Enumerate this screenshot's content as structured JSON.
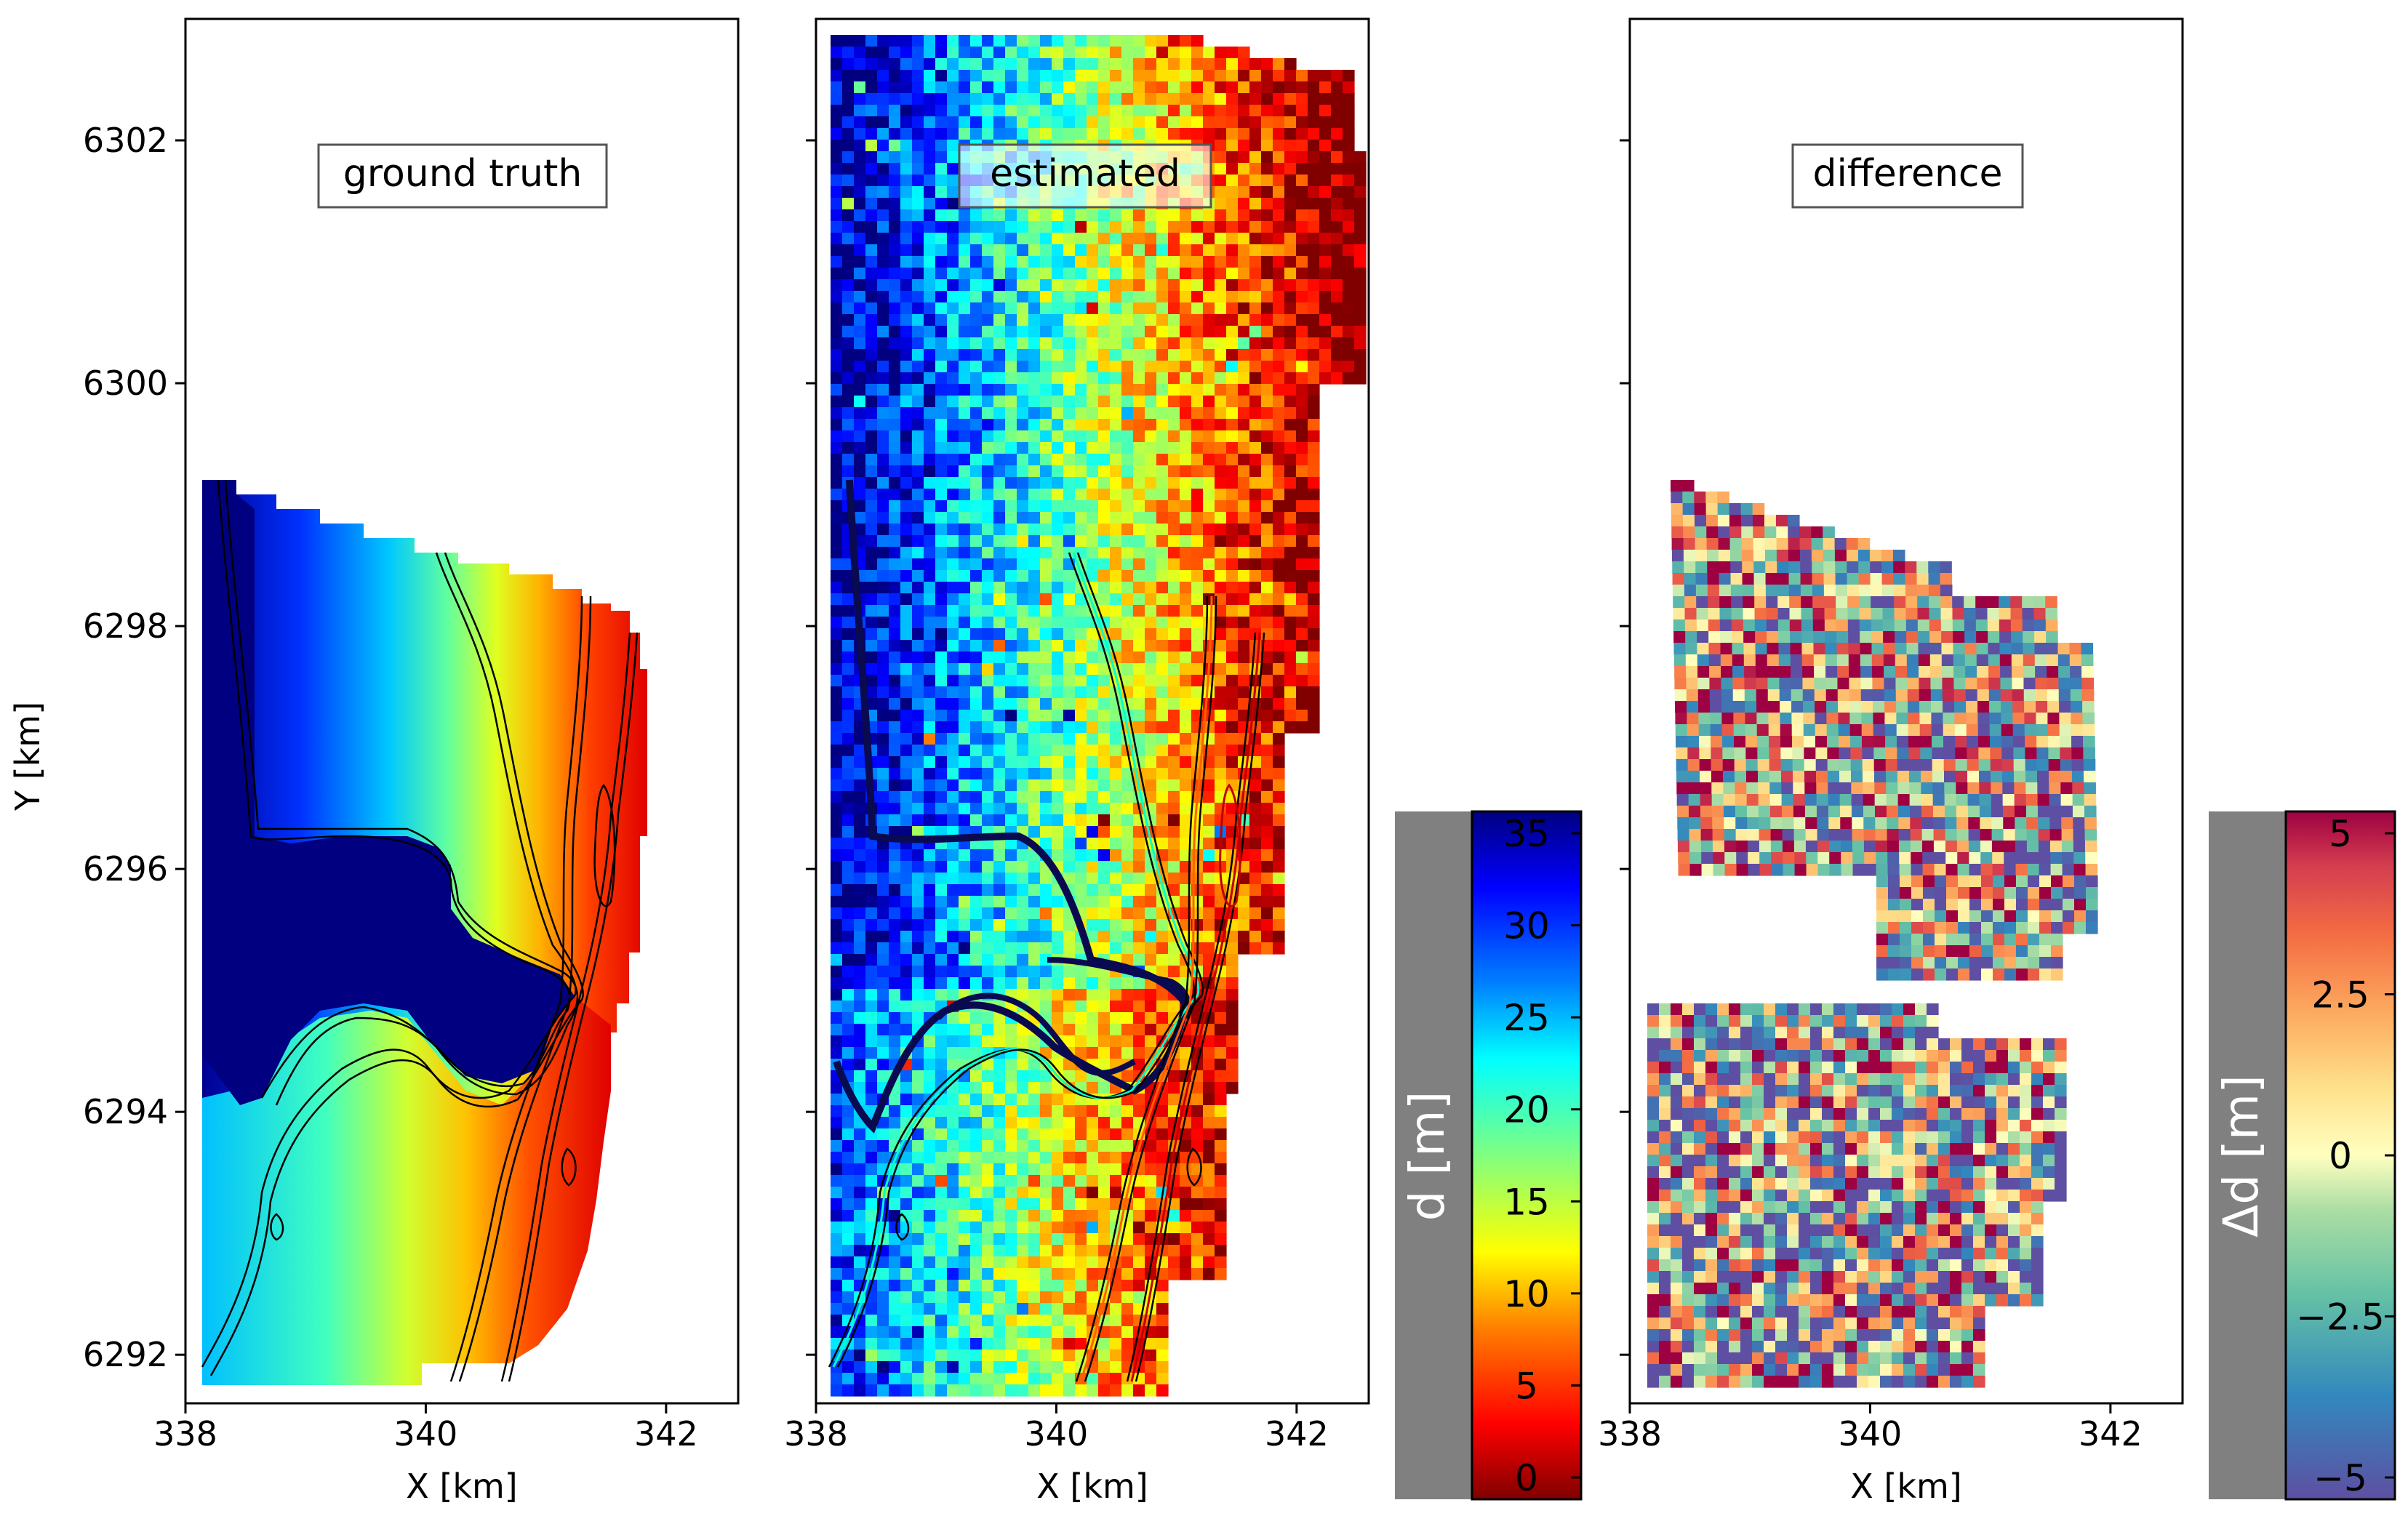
{
  "panels": [
    {
      "label": "ground truth"
    },
    {
      "label": "estimated"
    },
    {
      "label": "difference"
    }
  ],
  "colorbars": [
    {
      "label": "d [m]",
      "ticks": [
        "35",
        "30",
        "25",
        "20",
        "15",
        "10",
        "5",
        "0"
      ]
    },
    {
      "label": "Δd [m]",
      "ticks": [
        "5",
        "2.5",
        "0",
        "−2.5",
        "−5"
      ]
    }
  ],
  "colors": {
    "depth_scale": "jet (reversed: red = 0 m, dark blue = 35 m)",
    "difference_scale": "Spectral (red = +5 m, violet = −5 m)",
    "colorbar_label_bg": "#808080",
    "missing_data": "#ffffff"
  },
  "chart_data": [
    {
      "type": "heatmap",
      "title": "ground truth",
      "xlabel": "X [km]",
      "ylabel": "Y [km]",
      "xlim": [
        338,
        342.6
      ],
      "ylim": [
        6291.6,
        6303.0
      ],
      "xticks": [
        338,
        340,
        342
      ],
      "yticks": [
        6292,
        6294,
        6296,
        6298,
        6300,
        6302
      ],
      "value_range": [
        0,
        35
      ],
      "value_label": "d [m]",
      "description": "smooth depth field; depth decreases from west (~35 m) to east (~2 m); contour lines overlaid"
    },
    {
      "type": "heatmap",
      "title": "estimated",
      "xlabel": "X [km]",
      "xlim": [
        338,
        342.6
      ],
      "ylim": [
        6291.6,
        6303.0
      ],
      "xticks": [
        338,
        340,
        342
      ],
      "yticks": [
        6292,
        6294,
        6296,
        6298,
        6300,
        6302
      ],
      "value_range": [
        0,
        35
      ],
      "value_label": "d [m]",
      "description": "noisy pixelated depth estimate covering the full swath; contour lines of the ground truth overlaid"
    },
    {
      "type": "heatmap",
      "title": "difference",
      "xlabel": "X [km]",
      "xlim": [
        338,
        342.6
      ],
      "ylim": [
        6291.6,
        6303.0
      ],
      "xticks": [
        338,
        340,
        342
      ],
      "yticks": [
        6292,
        6294,
        6296,
        6298,
        6300,
        6302
      ],
      "value_range": [
        -5,
        5
      ],
      "value_label": "Δd [m]",
      "description": "pixelated difference map on the ground-truth footprint; values range from about -5 m to +5 m"
    }
  ]
}
